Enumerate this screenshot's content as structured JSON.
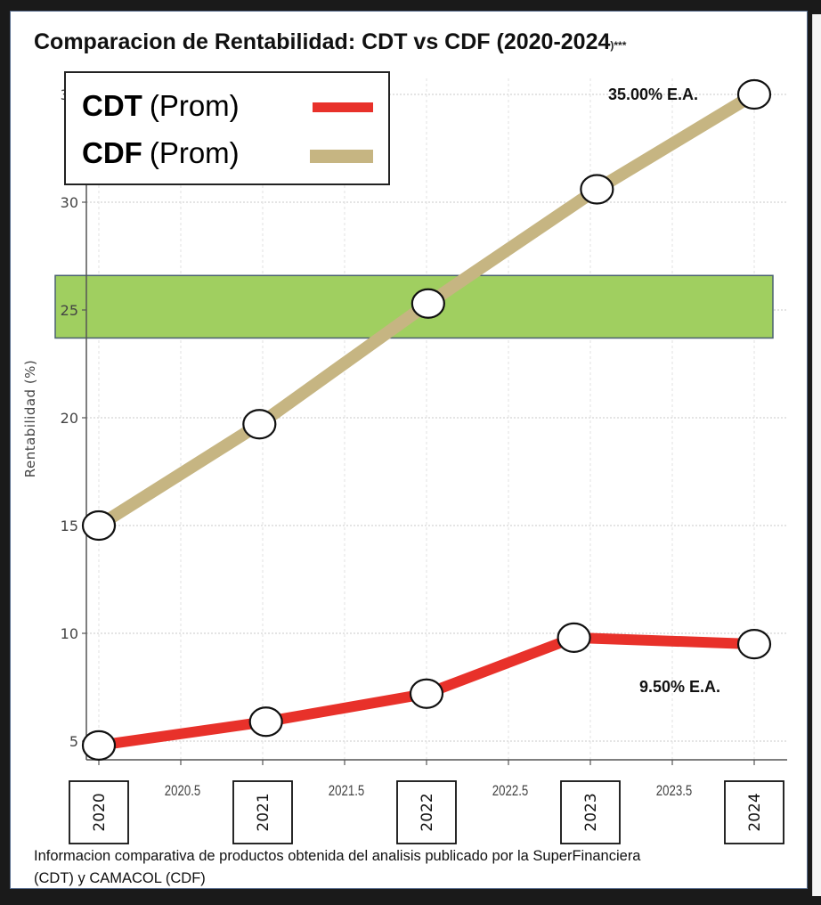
{
  "chart_data": {
    "type": "line",
    "title": "Comparacion de Rentabilidad: CDT vs CDF (2020-2024",
    "title_suffix": ")***",
    "xlabel": "",
    "ylabel": "Rentabilidad (%)",
    "xlim": [
      2019.95,
      2024.1
    ],
    "ylim": [
      3.9,
      36.2
    ],
    "y_ticks": [
      5,
      10,
      15,
      20,
      25,
      30,
      35
    ],
    "x_ticks_minor": [
      2020.5,
      2021.5,
      2022.5,
      2023.5
    ],
    "x_tick_labels_minor": [
      "2020.5",
      "2021.5",
      "2022.5",
      "2023.5"
    ],
    "year_boxes": [
      2020,
      2021,
      2022,
      2023,
      2024
    ],
    "year_box_labels": [
      "2020",
      "2021",
      "2022",
      "2023",
      "2024"
    ],
    "grid": true,
    "legend_position": "top-left",
    "series": [
      {
        "name": "CDT",
        "legend_suffix": "(Prom)",
        "color": "#e8312a",
        "x": [
          2020,
          2021.02,
          2022.0,
          2022.9,
          2024
        ],
        "values": [
          4.8,
          5.9,
          7.2,
          9.8,
          9.5
        ]
      },
      {
        "name": "CDF",
        "legend_suffix": "(Prom)",
        "color": "#c6b582",
        "x": [
          2020,
          2020.98,
          2022.01,
          2023.04,
          2024
        ],
        "values": [
          15.0,
          19.7,
          25.3,
          30.6,
          35.0
        ]
      }
    ],
    "highlight_band": {
      "y_from": 23.7,
      "y_to": 26.6,
      "color": "#a0cf60",
      "border": "#4a6070"
    },
    "annotations": [
      {
        "text": "35.00% E.A.",
        "series": "CDF",
        "x": 2024,
        "y": 35.0
      },
      {
        "text": "9.50% E.A.",
        "series": "CDT",
        "x": 2024,
        "y": 9.5
      }
    ],
    "footnote_lines": [
      "Informacion comparativa de productos obtenida del analisis publicado por la SuperFinanciera",
      "(CDT) y CAMACOL (CDF)"
    ]
  }
}
